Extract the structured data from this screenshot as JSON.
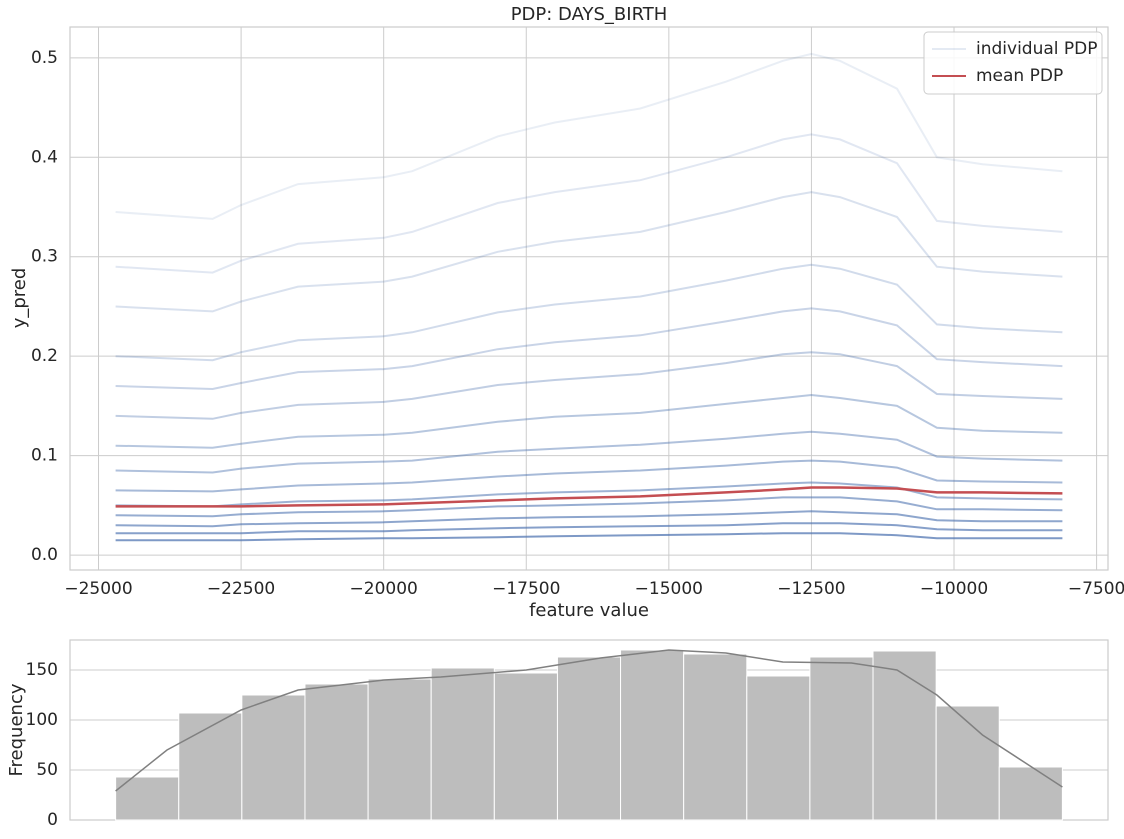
{
  "chart_data": [
    {
      "type": "line",
      "title": "PDP: DAYS_BIRTH",
      "xlabel": "feature value",
      "ylabel": "y_pred",
      "x": [
        -24700,
        -23000,
        -22500,
        -21500,
        -20000,
        -19500,
        -18000,
        -17000,
        -15500,
        -14000,
        -13000,
        -12500,
        -12000,
        -11000,
        -10300,
        -9500,
        -8100
      ],
      "series": [
        {
          "name": "individual PDP",
          "color": "#4c72b0",
          "lines": [
            [
              0.345,
              0.338,
              0.352,
              0.373,
              0.38,
              0.386,
              0.421,
              0.435,
              0.449,
              0.476,
              0.497,
              0.504,
              0.497,
              0.469,
              0.4,
              0.393,
              0.386
            ],
            [
              0.29,
              0.284,
              0.296,
              0.313,
              0.319,
              0.325,
              0.354,
              0.365,
              0.377,
              0.4,
              0.418,
              0.423,
              0.418,
              0.394,
              0.336,
              0.331,
              0.325
            ],
            [
              0.25,
              0.245,
              0.255,
              0.27,
              0.275,
              0.28,
              0.305,
              0.315,
              0.325,
              0.345,
              0.36,
              0.365,
              0.36,
              0.34,
              0.29,
              0.285,
              0.28
            ],
            [
              0.2,
              0.196,
              0.204,
              0.216,
              0.22,
              0.224,
              0.244,
              0.252,
              0.26,
              0.276,
              0.288,
              0.292,
              0.288,
              0.272,
              0.232,
              0.228,
              0.224
            ],
            [
              0.17,
              0.167,
              0.173,
              0.184,
              0.187,
              0.19,
              0.207,
              0.214,
              0.221,
              0.235,
              0.245,
              0.248,
              0.245,
              0.231,
              0.197,
              0.194,
              0.19
            ],
            [
              0.14,
              0.137,
              0.143,
              0.151,
              0.154,
              0.157,
              0.171,
              0.176,
              0.182,
              0.193,
              0.202,
              0.204,
              0.202,
              0.19,
              0.162,
              0.16,
              0.157
            ],
            [
              0.11,
              0.108,
              0.112,
              0.119,
              0.121,
              0.123,
              0.134,
              0.139,
              0.143,
              0.152,
              0.158,
              0.161,
              0.158,
              0.15,
              0.128,
              0.125,
              0.123
            ],
            [
              0.085,
              0.083,
              0.087,
              0.092,
              0.094,
              0.095,
              0.104,
              0.107,
              0.111,
              0.117,
              0.122,
              0.124,
              0.122,
              0.116,
              0.099,
              0.097,
              0.095
            ],
            [
              0.065,
              0.064,
              0.066,
              0.07,
              0.072,
              0.073,
              0.079,
              0.082,
              0.085,
              0.09,
              0.094,
              0.095,
              0.094,
              0.088,
              0.075,
              0.074,
              0.073
            ],
            [
              0.05,
              0.049,
              0.051,
              0.054,
              0.055,
              0.056,
              0.061,
              0.063,
              0.065,
              0.069,
              0.072,
              0.073,
              0.072,
              0.068,
              0.058,
              0.057,
              0.056
            ],
            [
              0.04,
              0.039,
              0.041,
              0.043,
              0.044,
              0.045,
              0.049,
              0.05,
              0.052,
              0.055,
              0.058,
              0.058,
              0.058,
              0.054,
              0.046,
              0.046,
              0.045
            ],
            [
              0.03,
              0.029,
              0.031,
              0.032,
              0.033,
              0.034,
              0.037,
              0.038,
              0.039,
              0.041,
              0.043,
              0.044,
              0.043,
              0.041,
              0.035,
              0.034,
              0.034
            ],
            [
              0.022,
              0.022,
              0.022,
              0.024,
              0.024,
              0.025,
              0.027,
              0.028,
              0.029,
              0.03,
              0.032,
              0.032,
              0.032,
              0.03,
              0.026,
              0.025,
              0.025
            ],
            [
              0.015,
              0.015,
              0.015,
              0.016,
              0.017,
              0.017,
              0.018,
              0.019,
              0.02,
              0.021,
              0.022,
              0.022,
              0.022,
              0.02,
              0.017,
              0.017,
              0.017
            ]
          ]
        },
        {
          "name": "mean PDP",
          "color": "#c44e52",
          "values": [
            0.049,
            0.049,
            0.049,
            0.05,
            0.051,
            0.052,
            0.055,
            0.057,
            0.059,
            0.063,
            0.066,
            0.068,
            0.068,
            0.067,
            0.063,
            0.063,
            0.062
          ]
        }
      ],
      "xlim": [
        -25500,
        -7300
      ],
      "xticks": [
        {
          "value": -25000,
          "label": "−25000"
        },
        {
          "value": -22500,
          "label": "−22500"
        },
        {
          "value": -20000,
          "label": "−20000"
        },
        {
          "value": -17500,
          "label": "−17500"
        },
        {
          "value": -15000,
          "label": "−15000"
        },
        {
          "value": -12500,
          "label": "−12500"
        },
        {
          "value": -10000,
          "label": "−10000"
        },
        {
          "value": -7500,
          "label": "−7500"
        }
      ],
      "ylim": [
        -0.015,
        0.531
      ],
      "yticks": [
        {
          "value": 0,
          "label": "0.0"
        },
        0.1,
        0.2,
        0.3,
        0.4,
        0.5
      ],
      "grid": true,
      "legend": "upper right"
    },
    {
      "type": "histogram",
      "ylabel": "Frequency",
      "bins": [
        -24700,
        -23593,
        -22487,
        -21380,
        -20273,
        -19167,
        -18060,
        -16953,
        -15847,
        -14740,
        -13633,
        -12527,
        -11420,
        -10313,
        -9207,
        -8100
      ],
      "values": [
        43,
        107,
        125,
        136,
        141,
        152,
        147,
        163,
        170,
        166,
        144,
        163,
        169,
        114,
        53
      ],
      "color": "#bdbdbd",
      "kde": {
        "x": [
          -24700,
          -23800,
          -22500,
          -21500,
          -20000,
          -19000,
          -17500,
          -16200,
          -15000,
          -14000,
          -13000,
          -11800,
          -11000,
          -10300,
          -9500,
          -8100
        ],
        "values": [
          29,
          70,
          110,
          130,
          140,
          143,
          150,
          162,
          170,
          167,
          158,
          157,
          150,
          125,
          85,
          33
        ],
        "color": "#808080"
      },
      "xlim": [
        -25500,
        -7300
      ],
      "ylim": [
        0,
        180
      ],
      "yticks": [
        0,
        50,
        100,
        150
      ],
      "grid": true
    }
  ]
}
